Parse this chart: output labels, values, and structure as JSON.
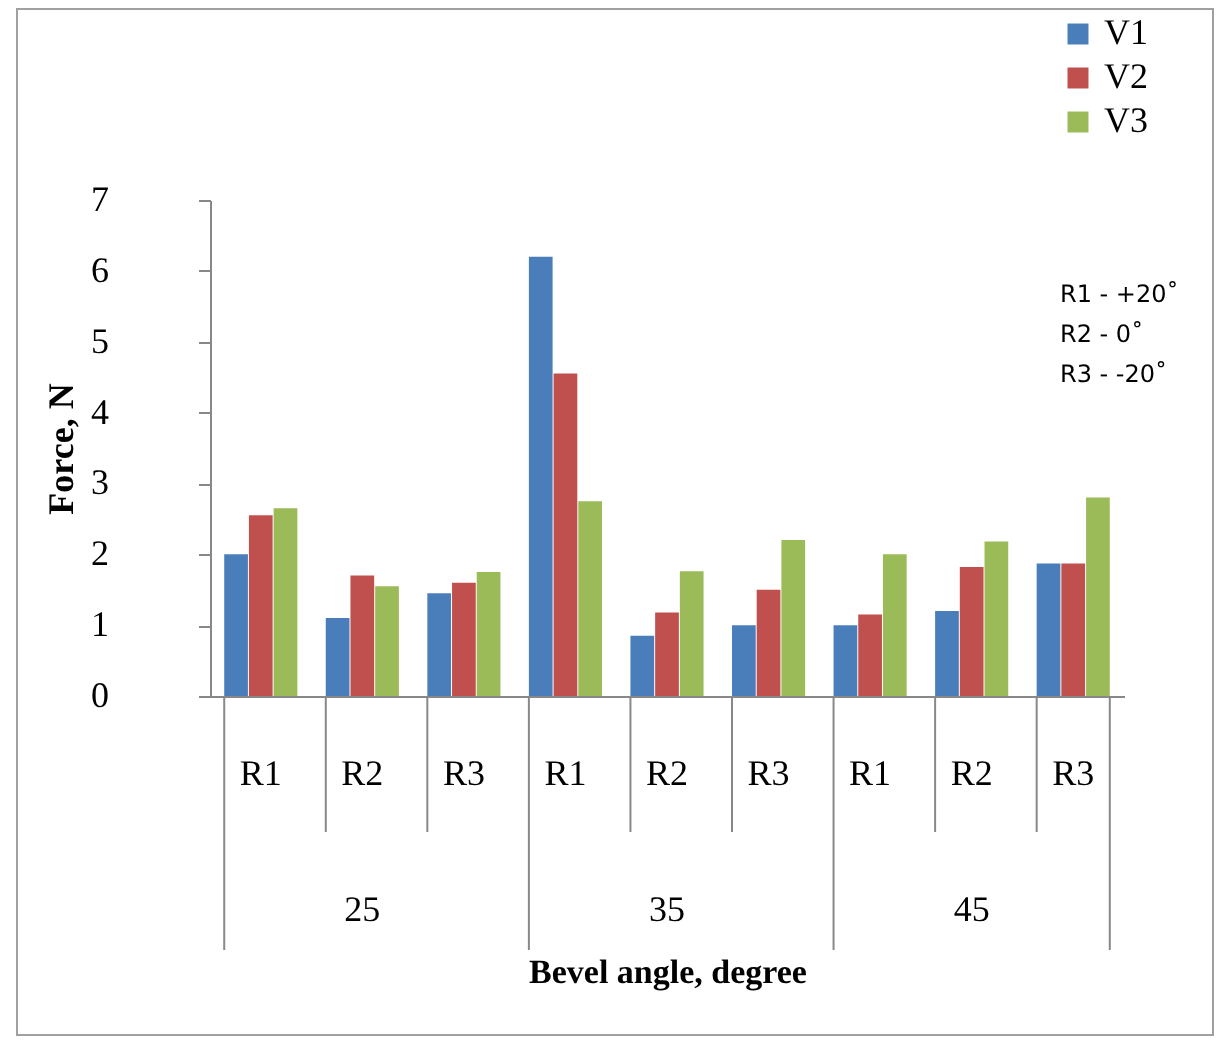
{
  "chart_data": {
    "type": "bar",
    "xlabel": "Bevel angle, degree",
    "ylabel": "Force, N",
    "categories": [
      "R1",
      "R2",
      "R3",
      "R1",
      "R2",
      "R3",
      "R1",
      "R2",
      "R3"
    ],
    "series": [
      {
        "name": "V1",
        "color": "#4a7ebb",
        "values": [
          2.0,
          1.1,
          1.45,
          6.2,
          0.85,
          1.0,
          1.0,
          1.2,
          1.87
        ]
      },
      {
        "name": "V2",
        "color": "#c0504d",
        "values": [
          2.55,
          1.7,
          1.6,
          4.55,
          1.18,
          1.5,
          1.15,
          1.82,
          1.87
        ]
      },
      {
        "name": "V3",
        "color": "#9bbb59",
        "values": [
          2.65,
          1.55,
          1.75,
          2.75,
          1.76,
          2.2,
          2.0,
          2.18,
          2.8
        ]
      }
    ],
    "annotations": [
      "25",
      "35",
      "45",
      "R1 - +20˚",
      "R2 - 0˚",
      "R3 - -20˚"
    ],
    "ylim": [
      0,
      7
    ],
    "yticks": [
      0,
      1,
      2,
      3,
      4,
      5,
      6,
      7
    ],
    "grid": false,
    "legend": "top right"
  }
}
